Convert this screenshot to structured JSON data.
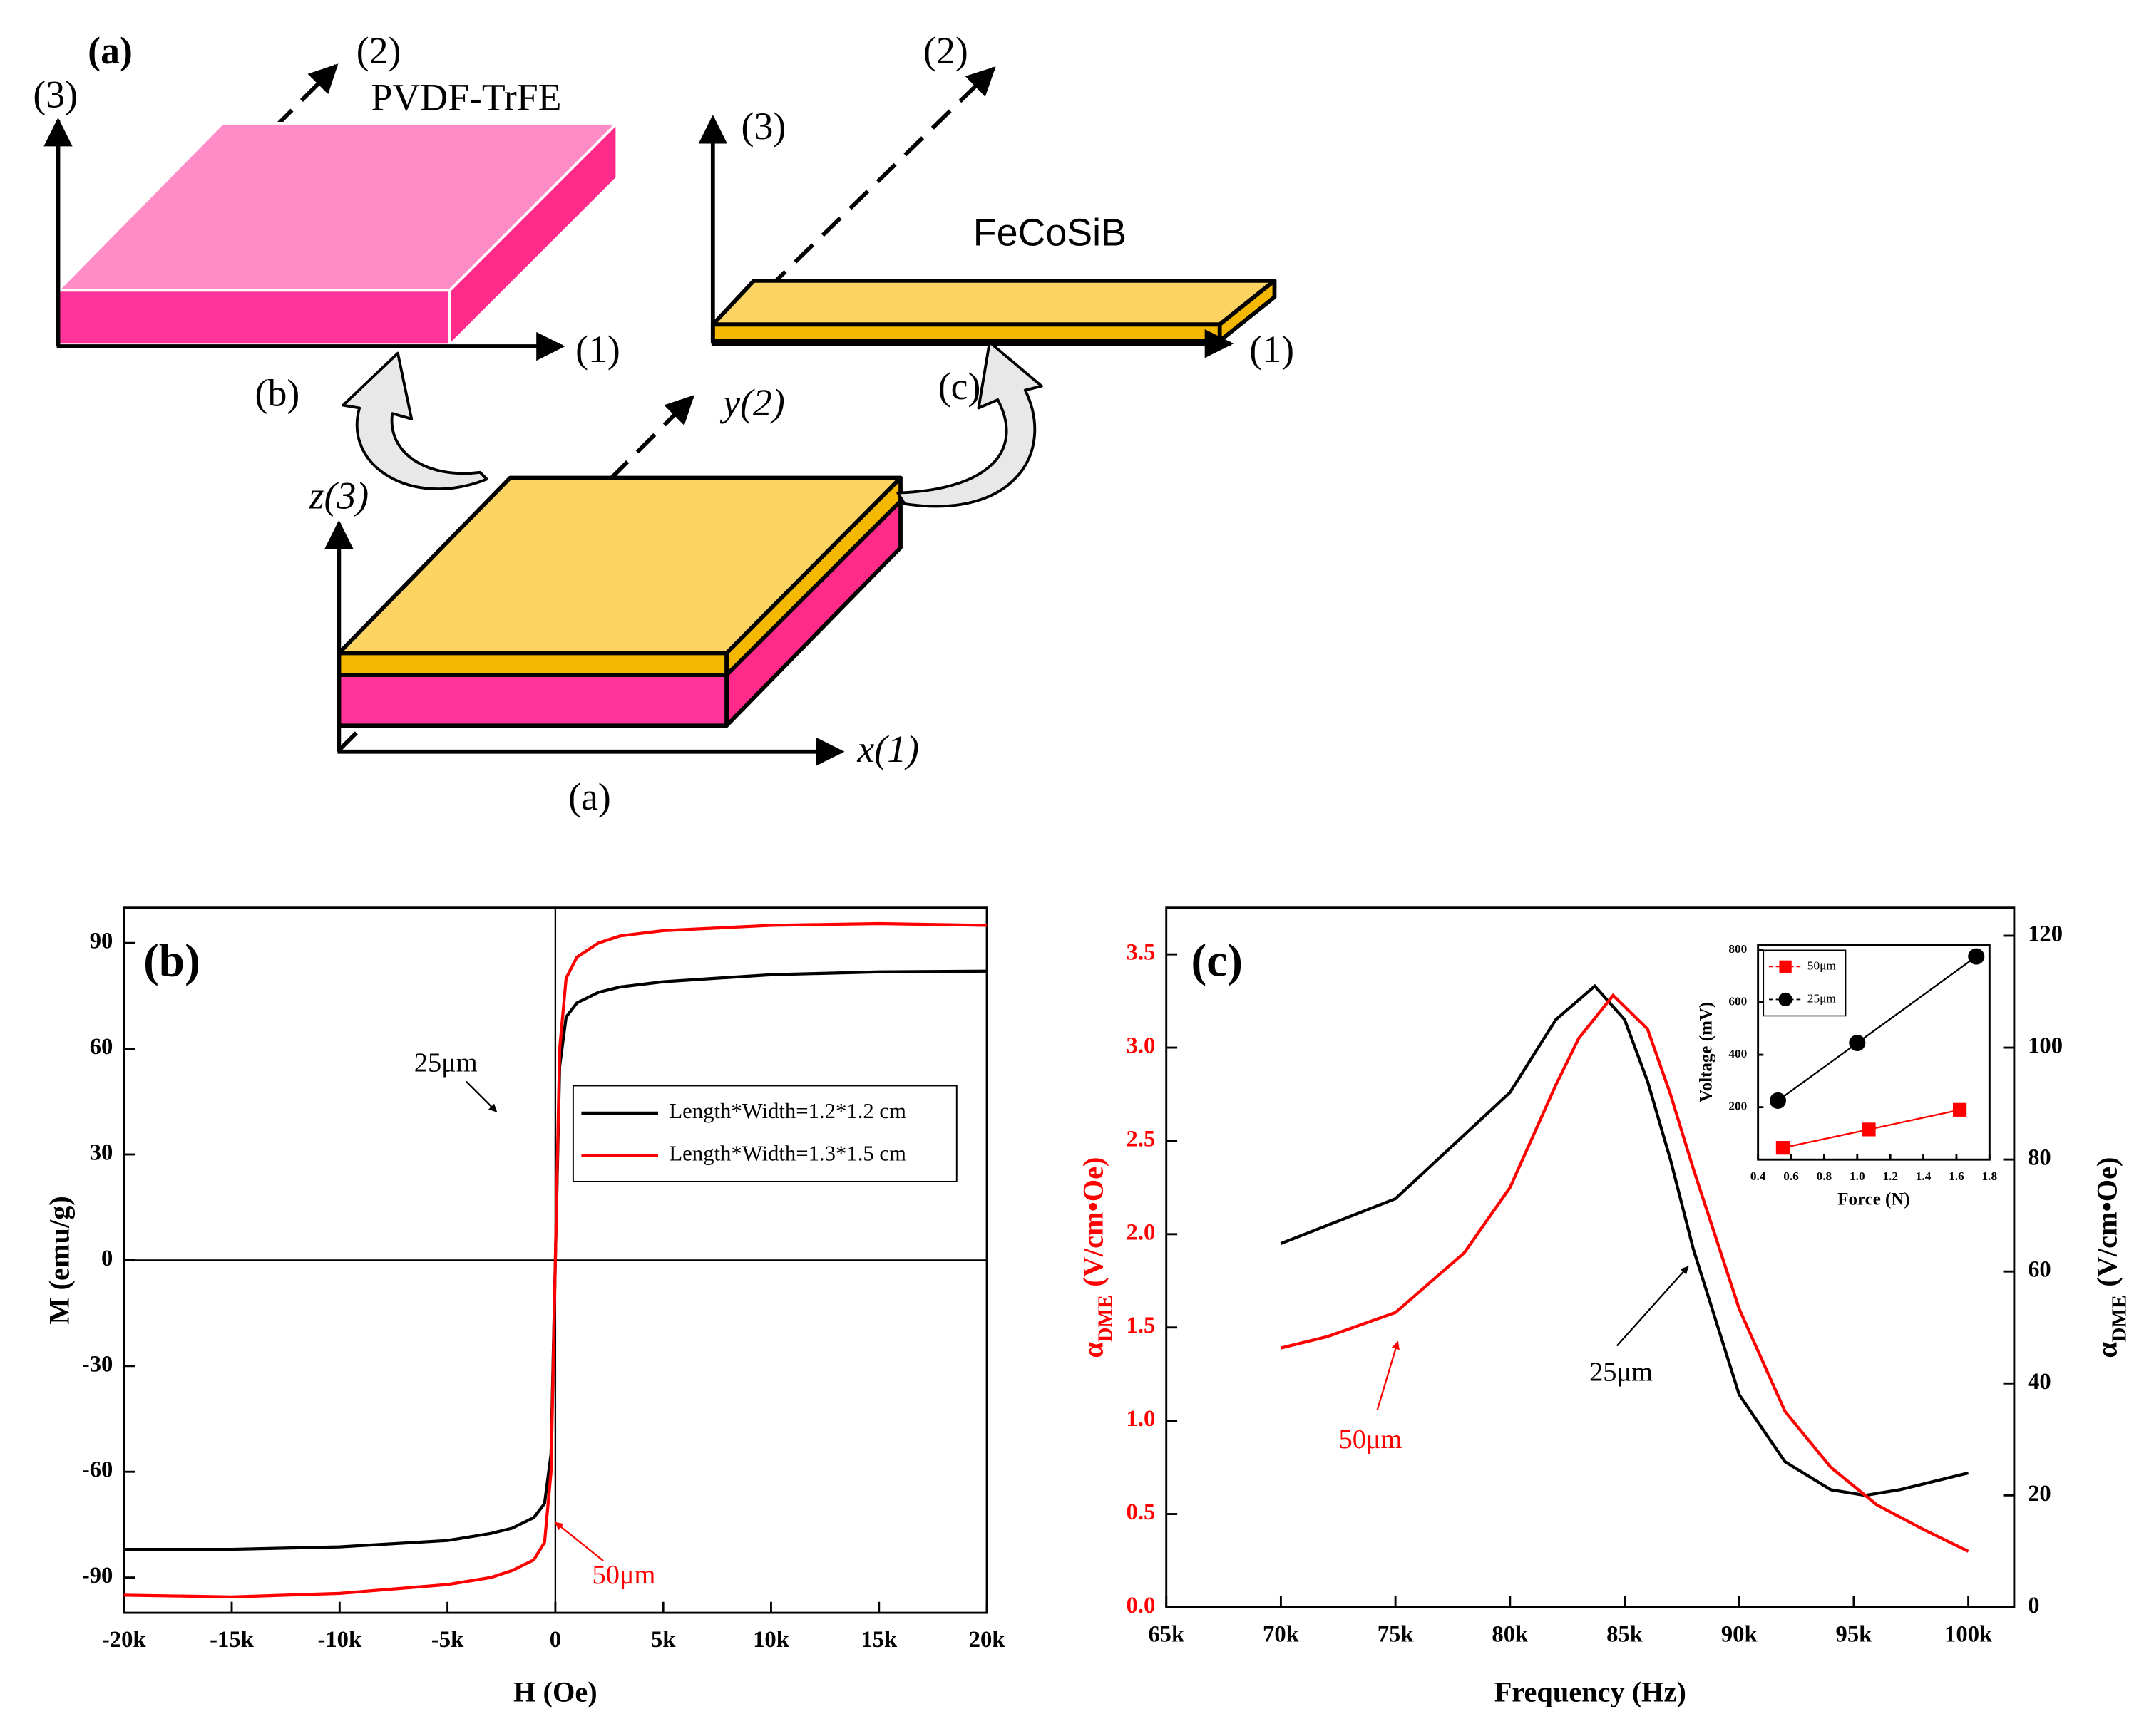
{
  "diagram": {
    "labels": [
      "(a)",
      "(3)",
      "(2)",
      "PVDF-TrFE",
      "(1)",
      "(b)",
      "(3)",
      "(2)",
      "FeCoSiB",
      "(1)",
      "(c)",
      "y(2)",
      "z(3)",
      "x(1)",
      "(a)"
    ]
  },
  "chart_data": [
    {
      "type": "line",
      "panel_label": "(b)",
      "xlabel": "H (Oe)",
      "ylabel": "M (emu/g)",
      "xlim": [
        -20000,
        20000
      ],
      "xticks": [
        {
          "value": -20000,
          "label": "-20k"
        },
        {
          "value": -15000,
          "label": "-15k"
        },
        {
          "value": -10000,
          "label": "-10k"
        },
        {
          "value": -5000,
          "label": "-5k"
        },
        0,
        {
          "value": 5000,
          "label": "5k"
        },
        {
          "value": 10000,
          "label": "10k"
        },
        {
          "value": 15000,
          "label": "15k"
        },
        {
          "value": 20000,
          "label": "20k"
        }
      ],
      "ylim": [
        -100,
        100
      ],
      "yticks": [
        -90,
        -60,
        -30,
        0,
        30,
        60,
        90
      ],
      "zero_lines": true,
      "x": [
        -20000,
        -15000,
        -10000,
        -5000,
        -3000,
        -2000,
        -1000,
        -500,
        -200,
        0,
        200,
        500,
        1000,
        2000,
        3000,
        5000,
        10000,
        15000,
        20000
      ],
      "series": [
        {
          "name": "Length*Width=1.2*1.2 cm",
          "color": "#000000",
          "values": [
            -82,
            -82,
            -81.3,
            -79.5,
            -77.5,
            -76,
            -73,
            -69,
            -55,
            0,
            55,
            69,
            73,
            76,
            77.5,
            79,
            81,
            81.8,
            82
          ]
        },
        {
          "name": "Length*Width=1.3*1.5 cm",
          "color": "#ff0000",
          "values": [
            -95,
            -95.5,
            -94.5,
            -92,
            -90,
            -88,
            -85,
            -80,
            -60,
            0,
            60,
            80,
            86,
            90,
            92,
            93.5,
            95,
            95.5,
            95
          ]
        }
      ],
      "legend": "center right",
      "annotations": [
        {
          "text": "25μm",
          "color": "#000000"
        },
        {
          "text": "50μm",
          "color": "#ff0000"
        }
      ]
    },
    {
      "type": "line",
      "panel_label": "(c)",
      "xlabel": "Frequency (Hz)",
      "ylabel": [
        "α",
        "DME",
        "(V/cm•Oe)"
      ],
      "y2label": [
        "α",
        "DME",
        "(V/cm•Oe)"
      ],
      "xlim": [
        65000,
        102000
      ],
      "xticks": [
        {
          "value": 65000,
          "label": "65k"
        },
        {
          "value": 70000,
          "label": "70k"
        },
        {
          "value": 75000,
          "label": "75k"
        },
        {
          "value": 80000,
          "label": "80k"
        },
        {
          "value": 85000,
          "label": "85k"
        },
        {
          "value": 90000,
          "label": "90k"
        },
        {
          "value": 95000,
          "label": "95k"
        },
        {
          "value": 100000,
          "label": "100k"
        }
      ],
      "ylim": [
        0,
        3.75
      ],
      "yticks": [
        {
          "value": 0,
          "label": "0.0"
        },
        0.5,
        {
          "value": 1,
          "label": "1.0"
        },
        1.5,
        {
          "value": 2,
          "label": "2.0"
        },
        2.5,
        {
          "value": 3,
          "label": "3.0"
        },
        3.5
      ],
      "ytick_color": "#ff0000",
      "y2lim": [
        0,
        125
      ],
      "y2ticks": [
        0,
        20,
        40,
        60,
        80,
        100,
        120
      ],
      "series": [
        {
          "color": "#000000",
          "axis": "y2",
          "x": [
            70000,
            75000,
            80000,
            82000,
            83700,
            85000,
            86000,
            87000,
            88000,
            90000,
            92000,
            94000,
            95500,
            97000,
            100000
          ],
          "values": [
            65,
            73,
            92,
            105,
            111,
            105,
            94,
            80,
            64,
            38,
            26,
            21,
            20,
            21,
            24
          ]
        },
        {
          "color": "#ff0000",
          "x": [
            70000,
            72000,
            75000,
            78000,
            80000,
            82000,
            83000,
            84500,
            86000,
            87000,
            88000,
            90000,
            92000,
            94000,
            96000,
            98000,
            100000
          ],
          "values": [
            1.39,
            1.45,
            1.58,
            1.9,
            2.25,
            2.8,
            3.05,
            3.28,
            3.1,
            2.75,
            2.35,
            1.6,
            1.05,
            0.75,
            0.55,
            0.42,
            0.3
          ]
        }
      ],
      "annotations": [
        {
          "text": "25μm",
          "color": "#000000"
        },
        {
          "text": "50μm",
          "color": "#ff0000"
        }
      ]
    },
    {
      "type": "line",
      "xlabel": "Force (N)",
      "ylabel": "Voltage (mV)",
      "xlim": [
        0.4,
        1.8
      ],
      "xticks": [
        0.4,
        0.6,
        0.8,
        {
          "value": 1,
          "label": "1.0"
        },
        1.2,
        1.4,
        1.6,
        1.8
      ],
      "ylim": [
        0,
        820
      ],
      "yticks": [
        200,
        400,
        600,
        800
      ],
      "series": [
        {
          "name": "50μm",
          "color": "#ff0000",
          "marker": "square",
          "x": [
            0.55,
            1.07,
            1.62
          ],
          "values": [
            45,
            115,
            190
          ]
        },
        {
          "name": "25μm",
          "color": "#000000",
          "marker": "circle",
          "x": [
            0.52,
            1.0,
            1.72
          ],
          "values": [
            225,
            445,
            775
          ]
        }
      ],
      "legend": "upper left"
    }
  ]
}
